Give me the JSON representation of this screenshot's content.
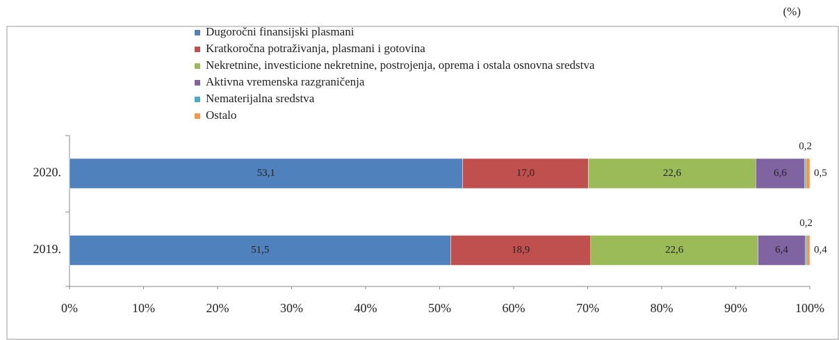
{
  "chart_data": {
    "type": "stacked-bar-horizontal",
    "unit": "(%)",
    "categories": [
      "2020.",
      "2019."
    ],
    "series": [
      {
        "name": "Dugoročni finansijski plasmani",
        "color": "#4f81bd",
        "values": [
          53.1,
          51.5
        ],
        "value_labels": [
          "53,1",
          "51,5"
        ]
      },
      {
        "name": "Kratkoročna potraživanja, plasmani i gotovina",
        "color": "#c0504d",
        "values": [
          17.0,
          18.9
        ],
        "value_labels": [
          "17,0",
          "18,9"
        ]
      },
      {
        "name": "Nekretnine, investicione nekretnine, postrojenja, oprema i ostala osnovna sredstva",
        "color": "#9bbb59",
        "values": [
          22.6,
          22.6
        ],
        "value_labels": [
          "22,6",
          "22,6"
        ]
      },
      {
        "name": "Aktivna vremenska razgraničenja",
        "color": "#8064a2",
        "values": [
          6.6,
          6.4
        ],
        "value_labels": [
          "6,6",
          "6,4"
        ]
      },
      {
        "name": "Nematerijalna sredstva",
        "color": "#4bacc6",
        "values": [
          0.2,
          0.2
        ],
        "value_labels": [
          "0,2",
          "0,2"
        ]
      },
      {
        "name": "Ostalo",
        "color": "#f79646",
        "values": [
          0.5,
          0.4
        ],
        "value_labels": [
          "0,5",
          "0,4"
        ]
      }
    ],
    "xlim": [
      0,
      100
    ],
    "xticks": [
      {
        "value": 0,
        "label": "0%"
      },
      {
        "value": 10,
        "label": "10%"
      },
      {
        "value": 20,
        "label": "20%"
      },
      {
        "value": 30,
        "label": "30%"
      },
      {
        "value": 40,
        "label": "40%"
      },
      {
        "value": 50,
        "label": "50%"
      },
      {
        "value": 60,
        "label": "60%"
      },
      {
        "value": 70,
        "label": "70%"
      },
      {
        "value": 80,
        "label": "80%"
      },
      {
        "value": 90,
        "label": "90%"
      },
      {
        "value": 100,
        "label": "100%"
      }
    ],
    "legend": "top"
  }
}
